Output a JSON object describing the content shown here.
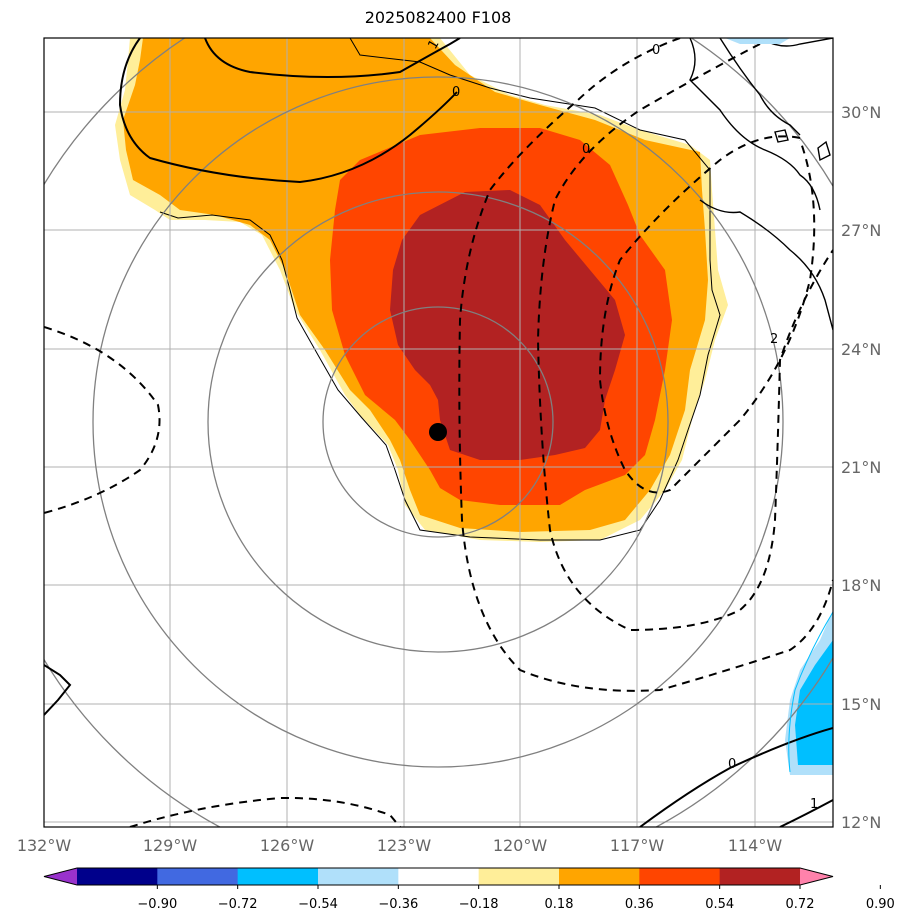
{
  "title": "2025082400 F108",
  "map": {
    "lon_range": [
      -132,
      -111
    ],
    "lat_range": [
      11.8,
      31.8
    ],
    "x_ticks": [
      "132°W",
      "129°W",
      "126°W",
      "123°W",
      "120°W",
      "117°W",
      "114°W"
    ],
    "y_ticks": [
      "30°N",
      "27°N",
      "24°N",
      "21°N",
      "18°N",
      "15°N",
      "12°N"
    ],
    "storm_center": {
      "lon": -122.2,
      "lat": 21.9
    },
    "contour_labels": [
      "1",
      "0",
      "0",
      "0",
      "2",
      "0",
      "1"
    ]
  },
  "colorbar": {
    "ticks": [
      "−0.90",
      "−0.72",
      "−0.54",
      "−0.36",
      "−0.18",
      "0.18",
      "0.36",
      "0.54",
      "0.72",
      "0.90"
    ],
    "colors": [
      "#9932cc",
      "#00008b",
      "#4169e1",
      "#00bfff",
      "#b0e0fa",
      "#ffffff",
      "#ffee99",
      "#ffa500",
      "#ff4500",
      "#b22222",
      "#ff82ab"
    ]
  },
  "colors": {
    "light_yellow": "#ffee99",
    "orange": "#ffa500",
    "red_orange": "#ff4500",
    "dark_red": "#b22222",
    "light_blue": "#b0e0fa",
    "deep_sky_blue": "#00bfff"
  }
}
